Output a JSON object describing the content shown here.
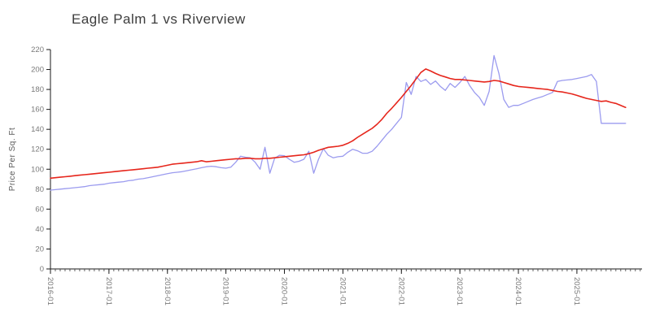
{
  "chart_data": {
    "type": "line",
    "title": "Eagle Palm 1 vs Riverview",
    "ylabel": "Price Per Sq. Ft",
    "xlabel": "",
    "grid": false,
    "legend": "none",
    "ylim": [
      0,
      220
    ],
    "y_ticks": [
      0,
      20,
      40,
      60,
      80,
      100,
      120,
      140,
      160,
      180,
      200,
      220
    ],
    "x_tick_labels": [
      "2016-01",
      "2017-01",
      "2018-01",
      "2019-01",
      "2020-01",
      "2021-01",
      "2022-01",
      "2023-01",
      "2024-01",
      "2025-01"
    ],
    "x_start_month": "2016-01",
    "x_end_month": "2025-11",
    "x_minor_tick_interval": "month",
    "series": [
      {
        "name": "Eagle Palm 1",
        "color": "#e6261c",
        "values": [
          91,
          91.5,
          92,
          92.5,
          93,
          93.5,
          94,
          94.5,
          95,
          95.5,
          96,
          96.5,
          97,
          97.5,
          98,
          98.5,
          99,
          99.5,
          100,
          100.5,
          101,
          101.5,
          102,
          103,
          104,
          105,
          105.5,
          106,
          106.5,
          107,
          107.5,
          108.5,
          107.5,
          108,
          108.5,
          109,
          109.5,
          110,
          110.5,
          110.5,
          111,
          111,
          110.5,
          110.5,
          111,
          111,
          111.5,
          112,
          112.5,
          113,
          113.5,
          114,
          114.5,
          115.5,
          117,
          119,
          120.5,
          122,
          122.5,
          123,
          124,
          126,
          128.5,
          132,
          135,
          138,
          141,
          145,
          150,
          156,
          161,
          166.5,
          172,
          178,
          184,
          190.5,
          197,
          200.5,
          198.5,
          196,
          194,
          192.5,
          191,
          190,
          190,
          189.5,
          189,
          188.5,
          188,
          187.5,
          188,
          189,
          188.5,
          187,
          185.5,
          184,
          183,
          182.5,
          182,
          181.5,
          181,
          180.5,
          180,
          179,
          178,
          177.5,
          176.5,
          175.5,
          174,
          172.5,
          171,
          170,
          169,
          168,
          168.5,
          167,
          166,
          164,
          162
        ]
      },
      {
        "name": "Riverview",
        "color": "#9b9bef",
        "values": [
          79,
          79.5,
          80,
          80.5,
          81,
          81.5,
          82,
          82.5,
          83.5,
          84,
          84.5,
          85,
          86,
          86.5,
          87,
          87.5,
          88.5,
          89,
          90,
          90.5,
          91.5,
          92.5,
          93.5,
          94.5,
          95.5,
          96.5,
          97,
          97.5,
          98.5,
          99.5,
          100.5,
          101.5,
          102.5,
          103,
          102.5,
          101.5,
          101,
          102,
          107,
          113,
          112,
          111.5,
          107,
          100,
          122,
          96,
          111,
          114,
          113.5,
          110,
          107,
          108,
          110,
          118,
          96,
          110,
          120.5,
          114,
          111.5,
          112.5,
          113,
          117,
          120,
          118.5,
          116,
          116,
          118,
          123,
          129,
          135,
          140,
          146,
          152,
          187,
          175,
          193,
          188,
          190,
          185,
          188.5,
          183,
          179,
          186,
          182,
          187,
          193,
          184,
          177,
          172,
          164,
          178,
          214,
          196,
          170,
          162,
          164,
          164,
          166,
          168,
          170,
          171.5,
          173,
          175,
          177,
          188,
          189,
          189.5,
          190,
          191,
          192,
          193,
          195,
          188,
          146,
          146,
          146,
          146,
          146,
          146
        ]
      }
    ]
  }
}
